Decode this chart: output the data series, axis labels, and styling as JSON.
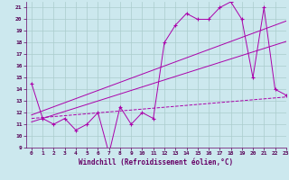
{
  "title": "",
  "xlabel": "Windchill (Refroidissement éolien,°C)",
  "bg_color": "#cce8ee",
  "line_color": "#aa00aa",
  "grid_color": "#aacccc",
  "x_data": [
    0,
    1,
    2,
    3,
    4,
    5,
    6,
    7,
    8,
    9,
    10,
    11,
    12,
    13,
    14,
    15,
    16,
    17,
    18,
    19,
    20,
    21,
    22,
    23
  ],
  "y_main": [
    14.5,
    11.5,
    11.0,
    11.5,
    10.5,
    11.0,
    12.0,
    8.5,
    12.5,
    11.0,
    12.0,
    11.5,
    18.0,
    19.5,
    20.5,
    20.0,
    20.0,
    21.0,
    21.5,
    20.0,
    15.0,
    21.0,
    14.0,
    13.5
  ],
  "y_trend1": [
    11.2,
    11.5,
    11.8,
    12.1,
    12.4,
    12.7,
    13.0,
    13.3,
    13.6,
    13.9,
    14.2,
    14.5,
    14.8,
    15.1,
    15.4,
    15.7,
    16.0,
    16.3,
    16.6,
    16.9,
    17.2,
    17.5,
    17.8,
    18.1
  ],
  "y_trend2": [
    11.8,
    12.15,
    12.5,
    12.85,
    13.2,
    13.55,
    13.9,
    14.25,
    14.6,
    14.95,
    15.3,
    15.65,
    16.0,
    16.35,
    16.7,
    17.05,
    17.4,
    17.75,
    18.1,
    18.45,
    18.8,
    19.15,
    19.5,
    19.85
  ],
  "y_flat": [
    11.5,
    11.58,
    11.66,
    11.74,
    11.82,
    11.9,
    11.98,
    12.06,
    12.14,
    12.22,
    12.3,
    12.38,
    12.46,
    12.54,
    12.62,
    12.7,
    12.78,
    12.86,
    12.94,
    13.02,
    13.1,
    13.18,
    13.26,
    13.34
  ],
  "ylim": [
    9,
    21.5
  ],
  "xlim": [
    -0.5,
    23
  ],
  "yticks": [
    9,
    10,
    11,
    12,
    13,
    14,
    15,
    16,
    17,
    18,
    19,
    20,
    21
  ],
  "xticks": [
    0,
    1,
    2,
    3,
    4,
    5,
    6,
    7,
    8,
    9,
    10,
    11,
    12,
    13,
    14,
    15,
    16,
    17,
    18,
    19,
    20,
    21,
    22,
    23
  ]
}
